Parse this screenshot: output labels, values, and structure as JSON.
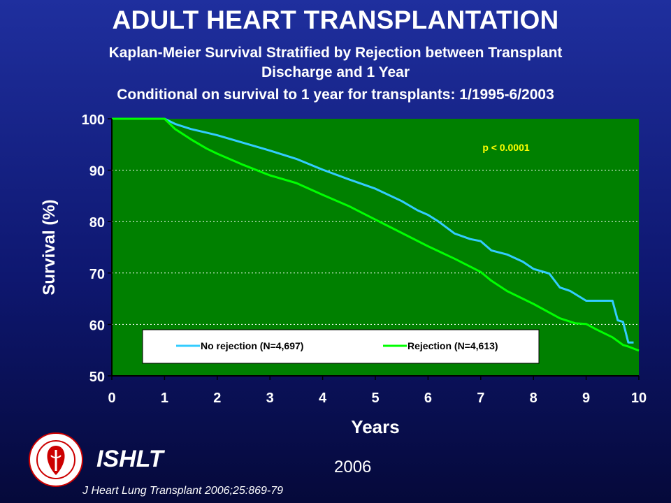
{
  "header": {
    "title": "ADULT HEART TRANSPLANTATION",
    "subtitle_line1": "Kaplan-Meier Survival Stratified by Rejection between Transplant",
    "subtitle_line2": "Discharge and 1 Year",
    "subtitle_line3": "Conditional on survival to 1 year for transplants: 1/1995-6/2003"
  },
  "footer": {
    "org": "ISHLT",
    "year": "2006",
    "citation": "J Heart Lung Transplant 2006;25:869-79"
  },
  "colors": {
    "plot_background": "#008000",
    "no_rejection": "#33ccff",
    "rejection": "#00ff00",
    "annotation": "#ffff00"
  },
  "chart_data": {
    "type": "line",
    "title": "",
    "xlabel": "Years",
    "ylabel": "Survival (%)",
    "xlim": [
      0,
      10
    ],
    "ylim": [
      50,
      100
    ],
    "xticks": [
      "0",
      "1",
      "2",
      "3",
      "4",
      "5",
      "6",
      "7",
      "8",
      "9",
      "10"
    ],
    "yticks": [
      "50",
      "60",
      "70",
      "80",
      "90",
      "100"
    ],
    "grid": "horizontal dashed",
    "legend_position": "bottom inside plot",
    "annotation": "p < 0.0001",
    "series": [
      {
        "name": "No rejection (N=4,697)",
        "color": "#33ccff",
        "x": [
          0,
          1,
          1.2,
          1.5,
          1.8,
          2,
          2.5,
          3,
          3.5,
          4,
          4.5,
          5,
          5.5,
          5.8,
          6,
          6.2,
          6.5,
          6.8,
          7,
          7.2,
          7.5,
          7.8,
          8,
          8.3,
          8.5,
          8.7,
          9,
          9.3,
          9.5,
          9.6,
          9.7,
          9.8,
          9.9
        ],
        "y": [
          100,
          100,
          99,
          98,
          97.3,
          96.8,
          95.3,
          93.8,
          92.2,
          90.1,
          88.2,
          86.4,
          84,
          82.2,
          81.3,
          80,
          77.7,
          76.6,
          76.2,
          74.4,
          73.6,
          72.2,
          70.8,
          69.9,
          67.2,
          66.5,
          64.6,
          64.6,
          64.6,
          60.8,
          60.5,
          56.5,
          56.5
        ]
      },
      {
        "name": "Rejection (N=4,613)",
        "color": "#00ff00",
        "x": [
          0,
          1,
          1.2,
          1.5,
          1.8,
          2,
          2.5,
          3,
          3.5,
          4,
          4.5,
          5,
          5.5,
          6,
          6.5,
          7,
          7.2,
          7.5,
          8,
          8.5,
          8.8,
          9,
          9.2,
          9.5,
          9.7,
          9.8,
          10
        ],
        "y": [
          100,
          100,
          98,
          96,
          94.2,
          93.2,
          91,
          89,
          87.5,
          85.2,
          83,
          80.4,
          77.8,
          75.2,
          72.8,
          70.2,
          68.5,
          66.5,
          64,
          61.2,
          60.2,
          60.1,
          59,
          57.5,
          56,
          55.7,
          54.9
        ]
      }
    ]
  }
}
